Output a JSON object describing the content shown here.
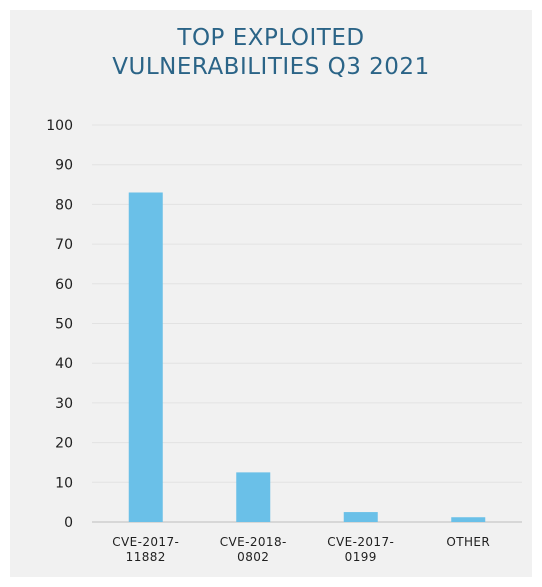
{
  "chart_data": {
    "type": "bar",
    "title_lines": [
      "TOP EXPLOITED",
      "VULNERABILITIES Q3 2021"
    ],
    "categories": [
      [
        "CVE-2017-",
        "11882"
      ],
      [
        "CVE-2018-",
        "0802"
      ],
      [
        "CVE-2017-",
        "0199"
      ],
      [
        "OTHER"
      ]
    ],
    "values": [
      83,
      12.5,
      2.5,
      1.2
    ],
    "xlabel": "",
    "ylabel": "",
    "ylim": [
      0,
      100
    ],
    "yticks": [
      0,
      10,
      20,
      30,
      40,
      50,
      60,
      70,
      80,
      90,
      100
    ],
    "grid": true,
    "colors": {
      "bar": "#6ac0e8",
      "title": "#2b6487",
      "grid": "#e2e2e2",
      "background": "#f1f1f1"
    }
  }
}
